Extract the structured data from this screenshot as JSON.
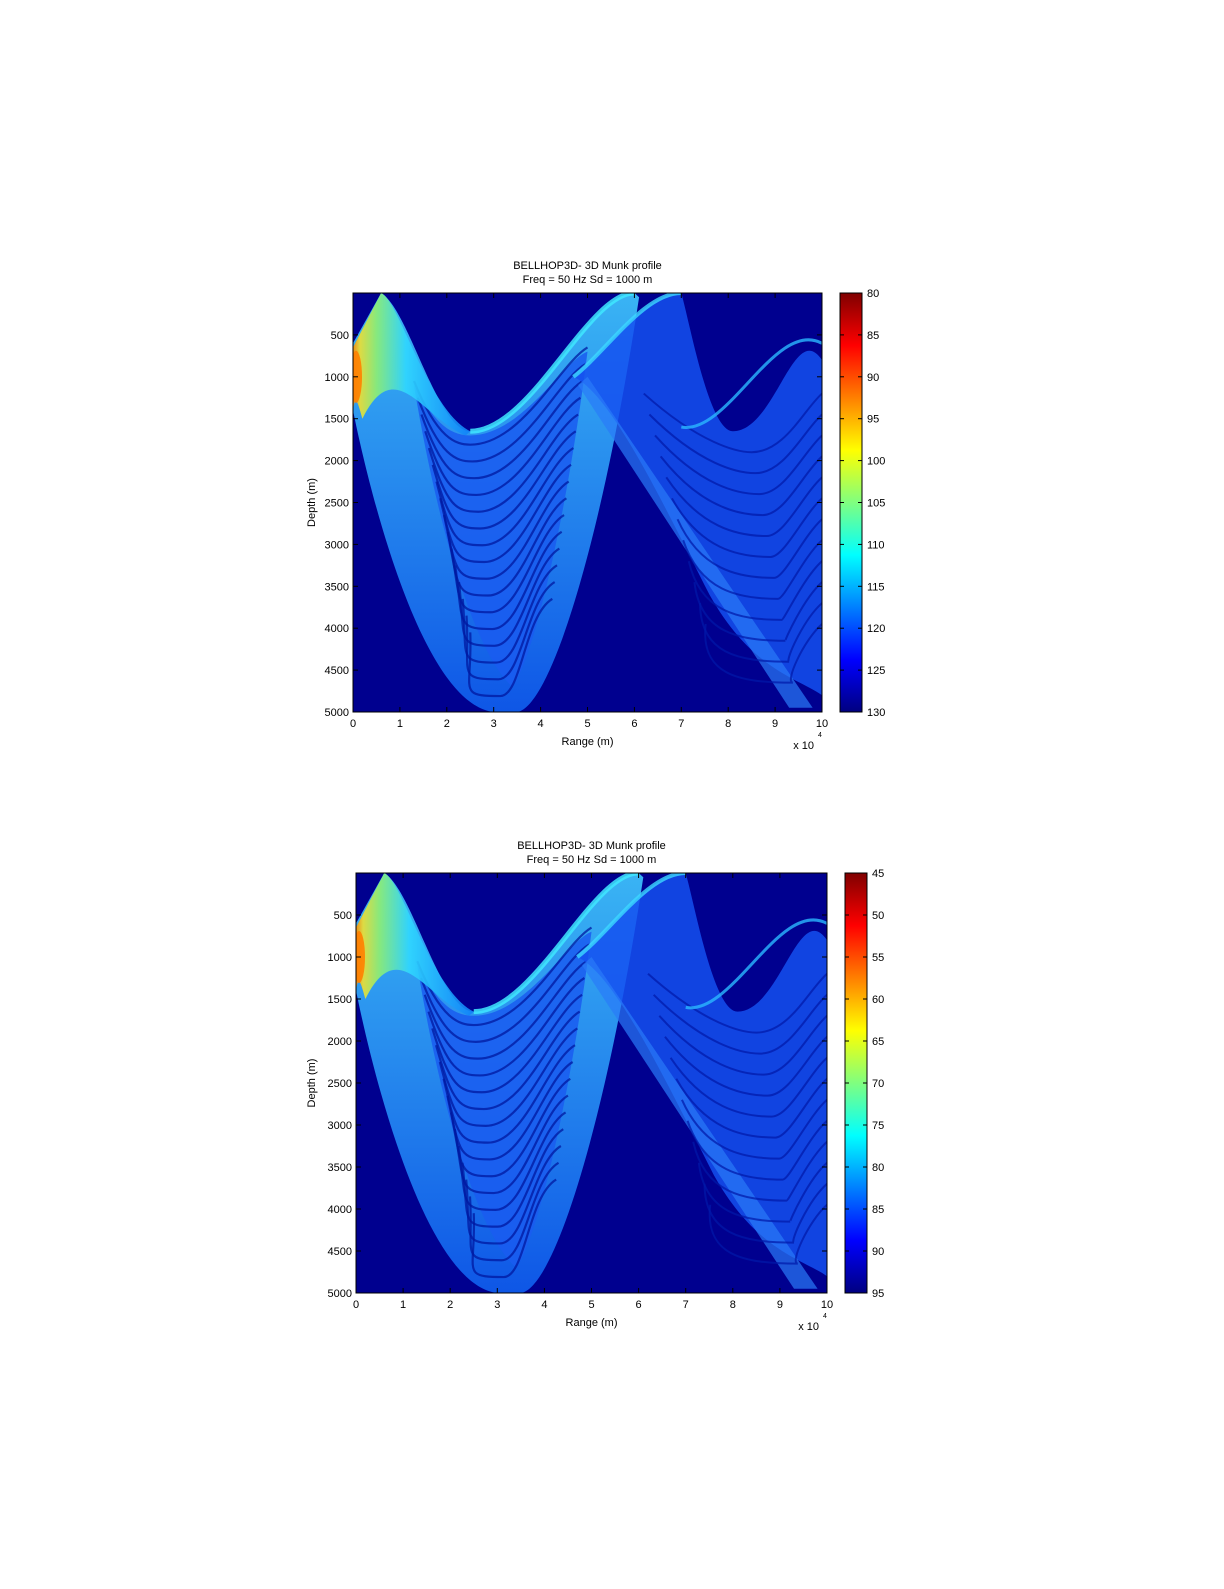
{
  "chart_data": [
    {
      "type": "heatmap",
      "title": "BELLHOP3D- 3D Munk profile",
      "subtitle": "Freq = 50 Hz    Sd = 1000 m",
      "xlabel": "Range (m)",
      "ylabel": "Depth (m)",
      "x_multiplier": "x 10",
      "x_multiplier_exp": "4",
      "xlim": [
        0,
        10
      ],
      "ylim": [
        0,
        5000
      ],
      "y_reversed": true,
      "xticks": [
        0,
        1,
        2,
        3,
        4,
        5,
        6,
        7,
        8,
        9,
        10
      ],
      "yticks": [
        500,
        1000,
        1500,
        2000,
        2500,
        3000,
        3500,
        4000,
        4500,
        5000
      ],
      "colorbar": {
        "ticks": [
          80,
          85,
          90,
          95,
          100,
          105,
          110,
          115,
          120,
          125,
          130
        ],
        "range": [
          80,
          130
        ],
        "colormap": "jet-reversed"
      },
      "background_color": "#00008f"
    },
    {
      "type": "heatmap",
      "title": "BELLHOP3D- 3D Munk profile",
      "subtitle": "Freq = 50 Hz    Sd = 1000 m",
      "xlabel": "Range (m)",
      "ylabel": "Depth (m)",
      "x_multiplier": "x 10",
      "x_multiplier_exp": "4",
      "xlim": [
        0,
        10
      ],
      "ylim": [
        0,
        5000
      ],
      "y_reversed": true,
      "xticks": [
        0,
        1,
        2,
        3,
        4,
        5,
        6,
        7,
        8,
        9,
        10
      ],
      "yticks": [
        500,
        1000,
        1500,
        2000,
        2500,
        3000,
        3500,
        4000,
        4500,
        5000
      ],
      "colorbar": {
        "ticks": [
          45,
          50,
          55,
          60,
          65,
          70,
          75,
          80,
          85,
          90,
          95
        ],
        "range": [
          45,
          95
        ],
        "colormap": "jet-reversed"
      },
      "background_color": "#00008f"
    }
  ]
}
